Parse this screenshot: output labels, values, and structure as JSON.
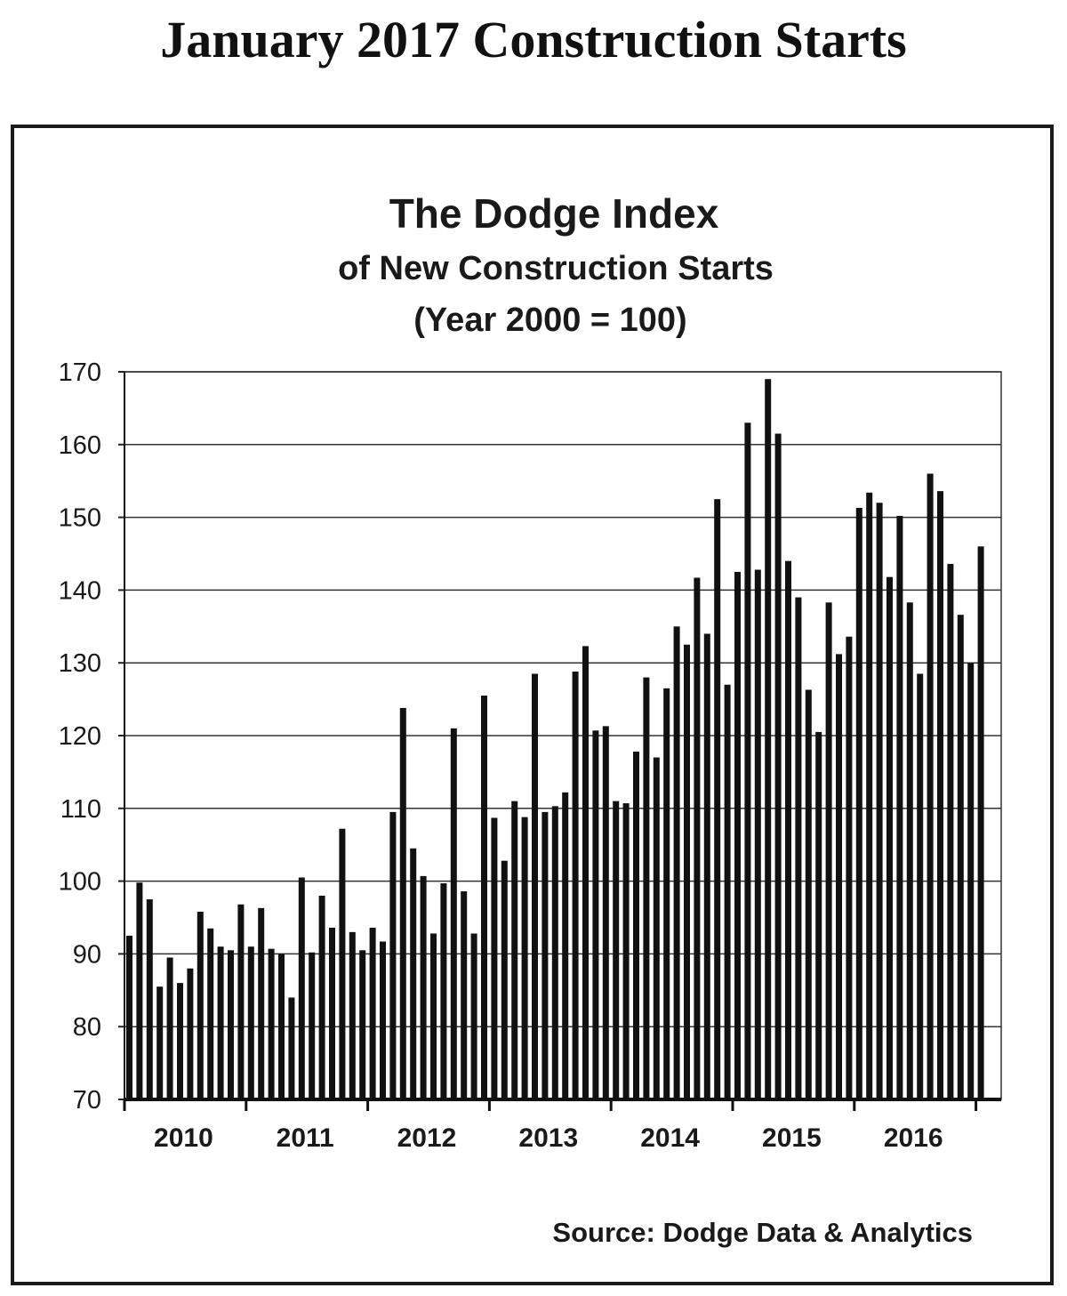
{
  "page": {
    "title": "January 2017 Construction Starts"
  },
  "chart_data": {
    "type": "bar",
    "title": "The Dodge Index",
    "subtitle_lines": [
      "of New Construction Starts",
      "(Year 2000 = 100)"
    ],
    "source": "Source:  Dodge Data & Analytics",
    "xlabel": "",
    "ylabel": "",
    "ylim": [
      70,
      170
    ],
    "yticks": [
      70,
      80,
      90,
      100,
      110,
      120,
      130,
      140,
      150,
      160,
      170
    ],
    "grid": true,
    "bar_color": "#111111",
    "year_labels": [
      "2010",
      "2011",
      "2012",
      "2013",
      "2014",
      "2015",
      "2016"
    ],
    "values": [
      92.5,
      99.8,
      97.5,
      85.5,
      89.5,
      86.0,
      88.0,
      95.8,
      93.5,
      91.0,
      90.5,
      96.8,
      91.0,
      96.3,
      90.7,
      90.0,
      84.0,
      100.5,
      90.2,
      98.0,
      93.6,
      107.2,
      93.0,
      90.5,
      93.6,
      91.7,
      109.5,
      123.8,
      104.5,
      100.7,
      92.8,
      99.7,
      121.0,
      98.6,
      92.8,
      125.5,
      108.7,
      102.8,
      111.0,
      108.8,
      128.5,
      109.5,
      110.3,
      112.2,
      128.8,
      132.3,
      120.7,
      121.3,
      111.0,
      110.7,
      117.8,
      128.0,
      117.0,
      126.5,
      135.0,
      132.5,
      141.7,
      134.0,
      152.5,
      127.0,
      142.5,
      163.0,
      142.8,
      169.0,
      161.5,
      144.0,
      139.0,
      126.3,
      120.5,
      138.3,
      131.2,
      133.6,
      151.3,
      153.4,
      152.0,
      141.8,
      150.2,
      138.3,
      128.5,
      156.0,
      153.6,
      143.6,
      136.6,
      130.0,
      146.0
    ]
  }
}
